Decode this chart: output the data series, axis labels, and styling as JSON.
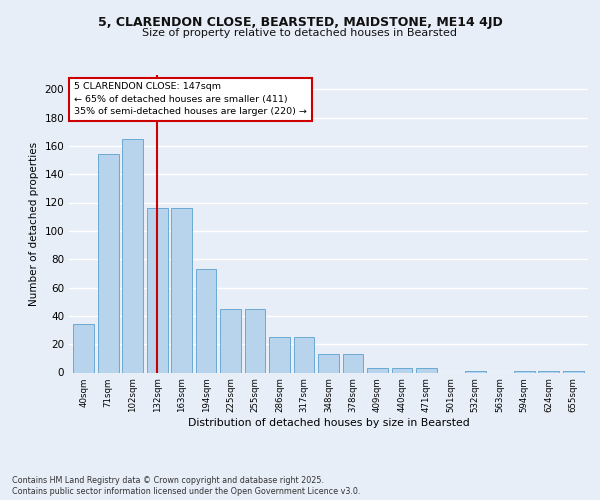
{
  "title1": "5, CLARENDON CLOSE, BEARSTED, MAIDSTONE, ME14 4JD",
  "title2": "Size of property relative to detached houses in Bearsted",
  "xlabel": "Distribution of detached houses by size in Bearsted",
  "ylabel": "Number of detached properties",
  "categories": [
    "40sqm",
    "71sqm",
    "102sqm",
    "132sqm",
    "163sqm",
    "194sqm",
    "225sqm",
    "255sqm",
    "286sqm",
    "317sqm",
    "348sqm",
    "378sqm",
    "409sqm",
    "440sqm",
    "471sqm",
    "501sqm",
    "532sqm",
    "563sqm",
    "594sqm",
    "624sqm",
    "655sqm"
  ],
  "values": [
    34,
    154,
    165,
    116,
    116,
    73,
    45,
    45,
    25,
    25,
    13,
    13,
    3,
    3,
    3,
    0,
    1,
    0,
    1,
    1,
    1
  ],
  "bar_color": "#b8d4ec",
  "bar_edge_color": "#6aaad4",
  "vline_x": 3,
  "vline_color": "#cc0000",
  "annotation_text": "5 CLARENDON CLOSE: 147sqm\n← 65% of detached houses are smaller (411)\n35% of semi-detached houses are larger (220) →",
  "annotation_box_color": "#ffffff",
  "annotation_box_edge": "#cc0000",
  "footnote1": "Contains HM Land Registry data © Crown copyright and database right 2025.",
  "footnote2": "Contains public sector information licensed under the Open Government Licence v3.0.",
  "bg_color": "#e8eef8",
  "plot_bg_color": "#e8eef8",
  "grid_color": "#ffffff",
  "ylim": [
    0,
    210
  ],
  "yticks": [
    0,
    20,
    40,
    60,
    80,
    100,
    120,
    140,
    160,
    180,
    200
  ]
}
